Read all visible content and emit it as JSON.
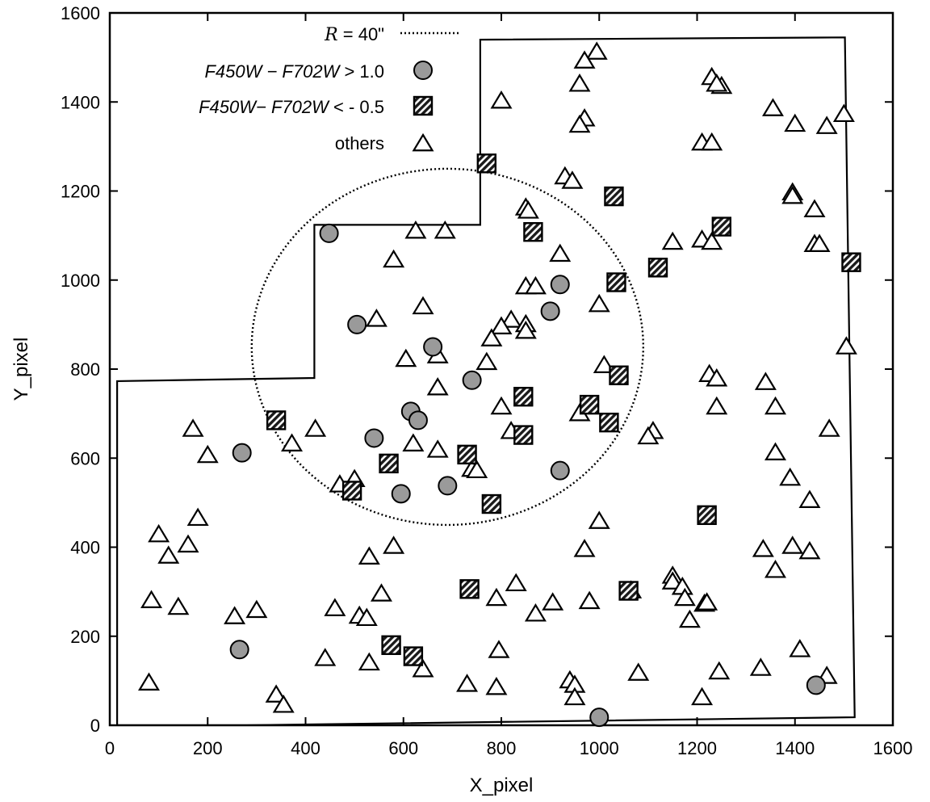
{
  "chart_data": {
    "type": "scatter",
    "xlabel": "X_pixel",
    "ylabel": "Y_pixel",
    "xlim": [
      0,
      1600
    ],
    "ylim": [
      0,
      1600
    ],
    "xticks": [
      0,
      200,
      400,
      600,
      800,
      1000,
      1200,
      1400,
      1600
    ],
    "yticks": [
      0,
      200,
      400,
      600,
      800,
      1000,
      1200,
      1400,
      1600
    ],
    "grid": false,
    "legend_position": "top-left",
    "legend": [
      {
        "key": "circle",
        "label_parts": [
          "R",
          " = 40\""
        ]
      },
      {
        "key": "red",
        "label_parts": [
          "F450W",
          " − F702W",
          " > 1.0"
        ]
      },
      {
        "key": "blue",
        "label_parts": [
          "F450W−",
          " F702W",
          " < - 0.5"
        ]
      },
      {
        "key": "others",
        "label_parts": [
          "others"
        ]
      }
    ],
    "circle": {
      "center": [
        690,
        850
      ],
      "radius": 400
    },
    "footprint": [
      [
        15,
        0
      ],
      [
        15,
        773
      ],
      [
        418,
        780
      ],
      [
        418,
        1124
      ],
      [
        757,
        1124
      ],
      [
        757,
        1540
      ],
      [
        1502,
        1545
      ],
      [
        1522,
        18
      ],
      [
        280,
        0
      ],
      [
        15,
        0
      ]
    ],
    "series": [
      {
        "name": "F450W − F702W > 1.0",
        "marker": "circle",
        "color": "#9a9a9a",
        "points": [
          [
            448,
            1105
          ],
          [
            505,
            900
          ],
          [
            920,
            990
          ],
          [
            900,
            930
          ],
          [
            660,
            850
          ],
          [
            540,
            645
          ],
          [
            270,
            612
          ],
          [
            615,
            705
          ],
          [
            630,
            685
          ],
          [
            740,
            775
          ],
          [
            595,
            520
          ],
          [
            690,
            538
          ],
          [
            920,
            572
          ],
          [
            265,
            170
          ],
          [
            1000,
            18
          ],
          [
            1443,
            90
          ]
        ]
      },
      {
        "name": "F450W − F702W < - 0.5",
        "marker": "hatched-square",
        "color": "#1a1a1a",
        "points": [
          [
            770,
            1262
          ],
          [
            1030,
            1188
          ],
          [
            1250,
            1120
          ],
          [
            865,
            1108
          ],
          [
            1120,
            1028
          ],
          [
            1515,
            1040
          ],
          [
            1035,
            995
          ],
          [
            1040,
            786
          ],
          [
            340,
            685
          ],
          [
            845,
            738
          ],
          [
            980,
            720
          ],
          [
            1020,
            680
          ],
          [
            845,
            652
          ],
          [
            570,
            588
          ],
          [
            730,
            608
          ],
          [
            495,
            527
          ],
          [
            780,
            497
          ],
          [
            1220,
            472
          ],
          [
            735,
            306
          ],
          [
            1060,
            302
          ],
          [
            575,
            180
          ],
          [
            620,
            155
          ]
        ]
      },
      {
        "name": "others",
        "marker": "open-triangle",
        "color": "#000000",
        "points": [
          [
            995,
            1512
          ],
          [
            970,
            1492
          ],
          [
            960,
            1440
          ],
          [
            800,
            1402
          ],
          [
            970,
            1362
          ],
          [
            960,
            1348
          ],
          [
            1230,
            1455
          ],
          [
            1250,
            1435
          ],
          [
            1240,
            1440
          ],
          [
            1355,
            1385
          ],
          [
            1400,
            1350
          ],
          [
            1465,
            1345
          ],
          [
            1500,
            1372
          ],
          [
            1210,
            1308
          ],
          [
            1230,
            1308
          ],
          [
            930,
            1232
          ],
          [
            945,
            1222
          ],
          [
            1395,
            1196
          ],
          [
            1395,
            1188
          ],
          [
            1440,
            1158
          ],
          [
            850,
            1162
          ],
          [
            855,
            1155
          ],
          [
            1210,
            1090
          ],
          [
            1230,
            1085
          ],
          [
            1150,
            1085
          ],
          [
            1440,
            1080
          ],
          [
            1450,
            1080
          ],
          [
            625,
            1110
          ],
          [
            685,
            1110
          ],
          [
            920,
            1058
          ],
          [
            580,
            1045
          ],
          [
            850,
            985
          ],
          [
            870,
            985
          ],
          [
            640,
            940
          ],
          [
            1000,
            945
          ],
          [
            545,
            912
          ],
          [
            820,
            910
          ],
          [
            800,
            895
          ],
          [
            850,
            900
          ],
          [
            850,
            885
          ],
          [
            780,
            868
          ],
          [
            670,
            830
          ],
          [
            605,
            822
          ],
          [
            770,
            815
          ],
          [
            1010,
            808
          ],
          [
            1225,
            788
          ],
          [
            1240,
            778
          ],
          [
            1340,
            770
          ],
          [
            1360,
            715
          ],
          [
            1240,
            715
          ],
          [
            670,
            758
          ],
          [
            800,
            715
          ],
          [
            820,
            660
          ],
          [
            960,
            700
          ],
          [
            1110,
            660
          ],
          [
            1100,
            648
          ],
          [
            1470,
            665
          ],
          [
            170,
            665
          ],
          [
            420,
            665
          ],
          [
            620,
            632
          ],
          [
            372,
            632
          ],
          [
            200,
            606
          ],
          [
            670,
            618
          ],
          [
            1360,
            612
          ],
          [
            740,
            575
          ],
          [
            750,
            572
          ],
          [
            500,
            552
          ],
          [
            470,
            540
          ],
          [
            1390,
            555
          ],
          [
            1430,
            505
          ],
          [
            180,
            465
          ],
          [
            1000,
            458
          ],
          [
            100,
            428
          ],
          [
            120,
            380
          ],
          [
            160,
            405
          ],
          [
            580,
            402
          ],
          [
            530,
            378
          ],
          [
            970,
            395
          ],
          [
            1335,
            395
          ],
          [
            1430,
            390
          ],
          [
            1395,
            402
          ],
          [
            1360,
            348
          ],
          [
            1150,
            335
          ],
          [
            1150,
            322
          ],
          [
            1170,
            310
          ],
          [
            1065,
            302
          ],
          [
            1175,
            285
          ],
          [
            1215,
            272
          ],
          [
            1220,
            275
          ],
          [
            1185,
            236
          ],
          [
            830,
            318
          ],
          [
            790,
            285
          ],
          [
            905,
            275
          ],
          [
            870,
            250
          ],
          [
            980,
            278
          ],
          [
            555,
            295
          ],
          [
            460,
            262
          ],
          [
            510,
            245
          ],
          [
            525,
            240
          ],
          [
            300,
            258
          ],
          [
            255,
            244
          ],
          [
            85,
            280
          ],
          [
            140,
            265
          ],
          [
            795,
            168
          ],
          [
            1410,
            170
          ],
          [
            530,
            140
          ],
          [
            440,
            150
          ],
          [
            640,
            125
          ],
          [
            730,
            92
          ],
          [
            790,
            85
          ],
          [
            940,
            100
          ],
          [
            950,
            90
          ],
          [
            950,
            62
          ],
          [
            1080,
            117
          ],
          [
            1245,
            120
          ],
          [
            1330,
            128
          ],
          [
            1465,
            110
          ],
          [
            80,
            95
          ],
          [
            340,
            68
          ],
          [
            355,
            45
          ],
          [
            1210,
            62
          ],
          [
            1505,
            850
          ]
        ]
      }
    ]
  }
}
